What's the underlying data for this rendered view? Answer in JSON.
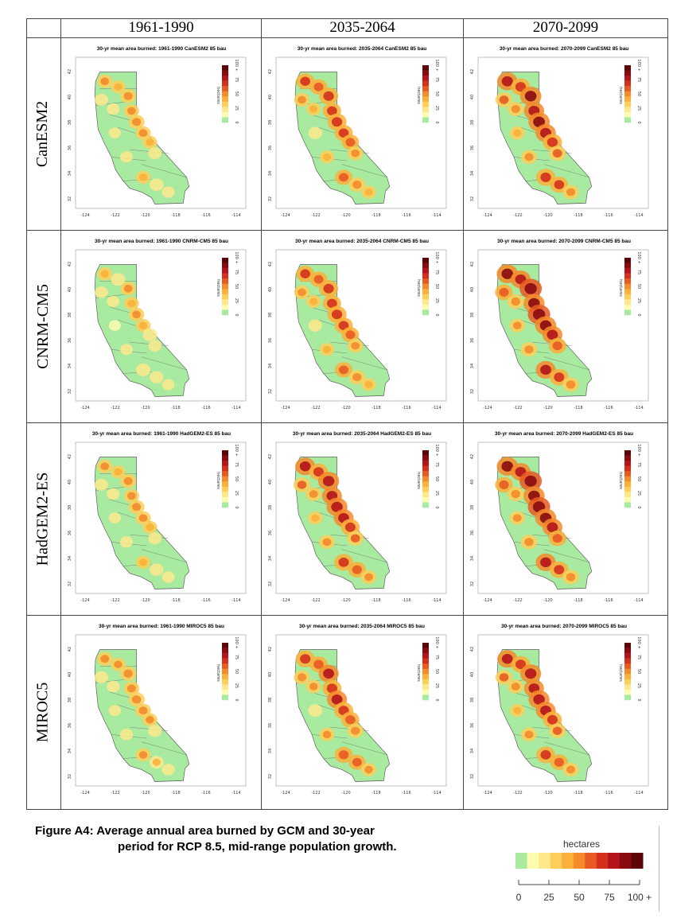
{
  "periods": [
    "1961-1990",
    "2035-2064",
    "2070-2099"
  ],
  "models": [
    "CanESM2",
    "CNRM-CM5",
    "HadGEM2-ES",
    "MIROC5"
  ],
  "map_titles": [
    [
      "30-yr mean area burned: 1961-1990 CanESM2 85 bau",
      "30-yr mean area burned: 2035-2064 CanESM2 85 bau",
      "30-yr mean area burned: 2070-2099 CanESM2 85 bau"
    ],
    [
      "30-yr mean area burned: 1961-1990 CNRM-CM5 85 bau",
      "30-yr mean area burned: 2035-2064 CNRM-CM5 85 bau",
      "30-yr mean area burned: 2070-2099 CNRM-CM5 85 bau"
    ],
    [
      "30-yr mean area burned: 1961-1990 HadGEM2-ES 85 bau",
      "30-yr mean area burned: 2035-2064 HadGEM2-ES 85 bau",
      "30-yr mean area burned: 2070-2099 HadGEM2-ES 85 bau"
    ],
    [
      "30-yr mean area burned: 1961-1990 MIROC5 85 bau",
      "30-yr mean area burned: 2035-2064 MIROC5 85 bau",
      "30-yr mean area burned: 2070-2099 MIROC5 85 bau"
    ]
  ],
  "map_axes": {
    "x_ticks": [
      "-124",
      "-122",
      "-120",
      "-118",
      "-116",
      "-114"
    ],
    "y_ticks": [
      "42",
      "40",
      "38",
      "36",
      "34",
      "32"
    ],
    "inset_label": "hectares",
    "inset_ticks": [
      "0",
      "25",
      "50",
      "75",
      "100 +"
    ]
  },
  "caption": {
    "line1": "Figure A4: Average annual area burned by GCM and 30-year",
    "line2": "period for RCP 8.5, mid-range population growth."
  },
  "legend": {
    "title": "hectares",
    "ticks": [
      "0",
      "25",
      "50",
      "75",
      "100 +"
    ],
    "colors": [
      "#a8eaa0",
      "#fdfbb0",
      "#fde98c",
      "#fdcf5a",
      "#fbb03a",
      "#f48a2a",
      "#e85a22",
      "#d4301b",
      "#b4141a",
      "#8a0a10",
      "#5c0408"
    ]
  },
  "intensity_per_row": [
    [
      0.25,
      0.6,
      0.85
    ],
    [
      0.2,
      0.6,
      0.95
    ],
    [
      0.25,
      0.8,
      0.95
    ],
    [
      0.3,
      0.7,
      0.8
    ]
  ]
}
